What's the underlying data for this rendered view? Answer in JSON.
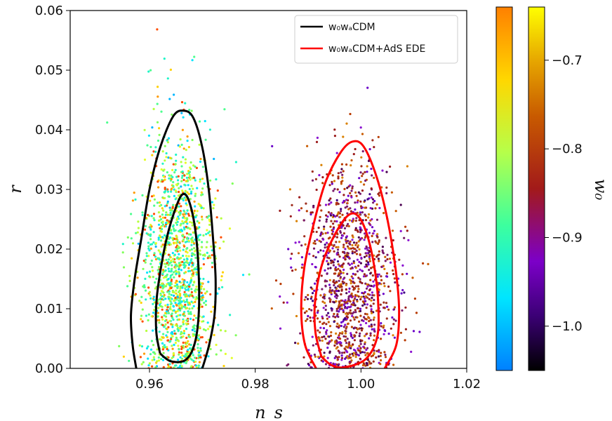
{
  "chart_data": {
    "type": "scatter",
    "xlabel": "n_s",
    "ylabel": "r",
    "xlim": [
      0.945,
      1.02
    ],
    "ylim": [
      0.0,
      0.06
    ],
    "xticks": [
      0.96,
      0.98,
      1.0,
      1.02
    ],
    "xtick_labels": [
      "0.96",
      "0.98",
      "1.00",
      "1.02"
    ],
    "yticks": [
      0.0,
      0.01,
      0.02,
      0.03,
      0.04,
      0.05,
      0.06
    ],
    "ytick_labels": [
      "0.00",
      "0.01",
      "0.02",
      "0.03",
      "0.04",
      "0.05",
      "0.06"
    ],
    "legend": {
      "placement": "top-right",
      "entries": [
        {
          "label": "w₀wₐCDM",
          "color": "#000000"
        },
        {
          "label": "w₀wₐCDM+AdS EDE",
          "color": "#ff0000"
        }
      ]
    },
    "series": [
      {
        "name": "w₀wₐCDM",
        "color": "#000000",
        "scatter_cmap": "jet",
        "scatter_center": [
          0.9655,
          0.017
        ],
        "scatter_spread": [
          0.0035,
          0.011
        ],
        "contours": [
          {
            "level": "95%",
            "points": [
              [
                0.9575,
                0.0
              ],
              [
                0.9568,
                0.004
              ],
              [
                0.9565,
                0.009
              ],
              [
                0.9572,
                0.015
              ],
              [
                0.9585,
                0.022
              ],
              [
                0.96,
                0.03
              ],
              [
                0.962,
                0.037
              ],
              [
                0.9645,
                0.0423
              ],
              [
                0.9665,
                0.0432
              ],
              [
                0.9683,
                0.042
              ],
              [
                0.97,
                0.037
              ],
              [
                0.9712,
                0.03
              ],
              [
                0.972,
                0.022
              ],
              [
                0.9725,
                0.015
              ],
              [
                0.9723,
                0.009
              ],
              [
                0.9713,
                0.004
              ],
              [
                0.97,
                0.0
              ]
            ]
          },
          {
            "level": "68%",
            "points": [
              [
                0.962,
                0.0025
              ],
              [
                0.9613,
                0.006
              ],
              [
                0.9613,
                0.011
              ],
              [
                0.962,
                0.016
              ],
              [
                0.9633,
                0.022
              ],
              [
                0.965,
                0.027
              ],
              [
                0.9663,
                0.0292
              ],
              [
                0.9675,
                0.028
              ],
              [
                0.9687,
                0.023
              ],
              [
                0.9693,
                0.016
              ],
              [
                0.9693,
                0.009
              ],
              [
                0.9685,
                0.004
              ],
              [
                0.9668,
                0.0014
              ],
              [
                0.964,
                0.0012
              ],
              [
                0.962,
                0.0025
              ]
            ]
          }
        ]
      },
      {
        "name": "w₀wₐCDM+AdS EDE",
        "color": "#ff0000",
        "scatter_cmap": "gnuplot",
        "scatter_center": [
          0.998,
          0.014
        ],
        "scatter_spread": [
          0.0045,
          0.01
        ],
        "contours": [
          {
            "level": "95%",
            "points": [
              [
                0.9915,
                0.0
              ],
              [
                0.9894,
                0.004
              ],
              [
                0.9887,
                0.01
              ],
              [
                0.9893,
                0.017
              ],
              [
                0.991,
                0.024
              ],
              [
                0.9932,
                0.031
              ],
              [
                0.996,
                0.036
              ],
              [
                0.9983,
                0.038
              ],
              [
                1.0005,
                0.0372
              ],
              [
                1.003,
                0.032
              ],
              [
                1.005,
                0.025
              ],
              [
                1.0065,
                0.017
              ],
              [
                1.0072,
                0.01
              ],
              [
                1.0067,
                0.004
              ],
              [
                1.0045,
                0.0
              ]
            ]
          },
          {
            "level": "68%",
            "points": [
              [
                0.9925,
                0.002
              ],
              [
                0.9914,
                0.006
              ],
              [
                0.9913,
                0.011
              ],
              [
                0.9925,
                0.017
              ],
              [
                0.9948,
                0.022
              ],
              [
                0.9975,
                0.0256
              ],
              [
                0.9995,
                0.0255
              ],
              [
                1.0013,
                0.022
              ],
              [
                1.0027,
                0.016
              ],
              [
                1.0033,
                0.01
              ],
              [
                1.003,
                0.005
              ],
              [
                1.0008,
                0.0015
              ],
              [
                0.997,
                0.0002
              ],
              [
                0.9945,
                0.0005
              ],
              [
                0.9925,
                0.002
              ]
            ]
          }
        ]
      }
    ],
    "colorbars": [
      {
        "cmap": "jet",
        "ticks": [],
        "tick_labels": []
      },
      {
        "cmap": "gnuplot",
        "label": "w₀",
        "ticks": [
          -0.7,
          -0.8,
          -0.9,
          -1.0
        ],
        "tick_labels": [
          "−0.7",
          "−0.8",
          "−0.9",
          "−1.0"
        ],
        "range": [
          -1.05,
          -0.64
        ]
      }
    ]
  }
}
